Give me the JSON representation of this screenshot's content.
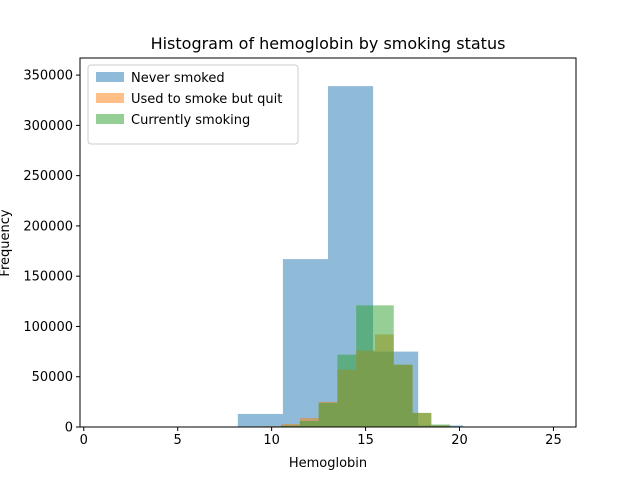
{
  "chart_data": {
    "type": "bar",
    "title": "Histogram of hemoglobin by smoking status",
    "xlabel": "Hemoglobin",
    "ylabel": "Frequency",
    "xlim": [
      -0.2,
      26.2
    ],
    "ylim": [
      0,
      367000
    ],
    "x_ticks": [
      0,
      5,
      10,
      15,
      20,
      25
    ],
    "y_ticks": [
      0,
      50000,
      100000,
      150000,
      200000,
      250000,
      300000,
      350000
    ],
    "legend_position": "top-left",
    "bar_opacity": 0.5,
    "series": [
      {
        "name": "Never smoked",
        "color": "#1f77b4",
        "bins": [
          {
            "x0": 1.0,
            "x1": 3.4,
            "value": 0
          },
          {
            "x0": 3.4,
            "x1": 5.8,
            "value": 0
          },
          {
            "x0": 5.8,
            "x1": 8.2,
            "value": 500
          },
          {
            "x0": 8.2,
            "x1": 10.6,
            "value": 13000
          },
          {
            "x0": 10.6,
            "x1": 13.0,
            "value": 167000
          },
          {
            "x0": 13.0,
            "x1": 15.4,
            "value": 339000
          },
          {
            "x0": 15.4,
            "x1": 17.8,
            "value": 75000
          },
          {
            "x0": 17.8,
            "x1": 20.2,
            "value": 1500
          },
          {
            "x0": 20.2,
            "x1": 22.6,
            "value": 0
          },
          {
            "x0": 22.6,
            "x1": 25.0,
            "value": 0
          }
        ]
      },
      {
        "name": "Used to smoke but quit",
        "color": "#ff7f0e",
        "bins": [
          {
            "x0": 8.5,
            "x1": 9.5,
            "value": 200
          },
          {
            "x0": 9.5,
            "x1": 10.5,
            "value": 800
          },
          {
            "x0": 10.5,
            "x1": 11.5,
            "value": 3000
          },
          {
            "x0": 11.5,
            "x1": 12.5,
            "value": 9000
          },
          {
            "x0": 12.5,
            "x1": 13.5,
            "value": 25000
          },
          {
            "x0": 13.5,
            "x1": 14.5,
            "value": 57000
          },
          {
            "x0": 14.5,
            "x1": 15.5,
            "value": 76000
          },
          {
            "x0": 15.5,
            "x1": 16.5,
            "value": 92000
          },
          {
            "x0": 16.5,
            "x1": 17.5,
            "value": 62000
          },
          {
            "x0": 17.5,
            "x1": 18.5,
            "value": 14000
          },
          {
            "x0": 18.5,
            "x1": 19.5,
            "value": 1500
          }
        ]
      },
      {
        "name": "Currently smoking",
        "color": "#2ca02c",
        "bins": [
          {
            "x0": 9.5,
            "x1": 10.5,
            "value": 500
          },
          {
            "x0": 10.5,
            "x1": 11.5,
            "value": 1500
          },
          {
            "x0": 11.5,
            "x1": 12.5,
            "value": 6000
          },
          {
            "x0": 12.5,
            "x1": 13.5,
            "value": 24000
          },
          {
            "x0": 13.5,
            "x1": 14.5,
            "value": 72000
          },
          {
            "x0": 14.5,
            "x1": 15.5,
            "value": 121000
          },
          {
            "x0": 15.5,
            "x1": 16.5,
            "value": 121000
          },
          {
            "x0": 16.5,
            "x1": 17.5,
            "value": 62000
          },
          {
            "x0": 17.5,
            "x1": 18.5,
            "value": 14000
          },
          {
            "x0": 18.5,
            "x1": 19.5,
            "value": 2500
          },
          {
            "x0": 19.5,
            "x1": 20.5,
            "value": 300
          }
        ]
      }
    ]
  }
}
